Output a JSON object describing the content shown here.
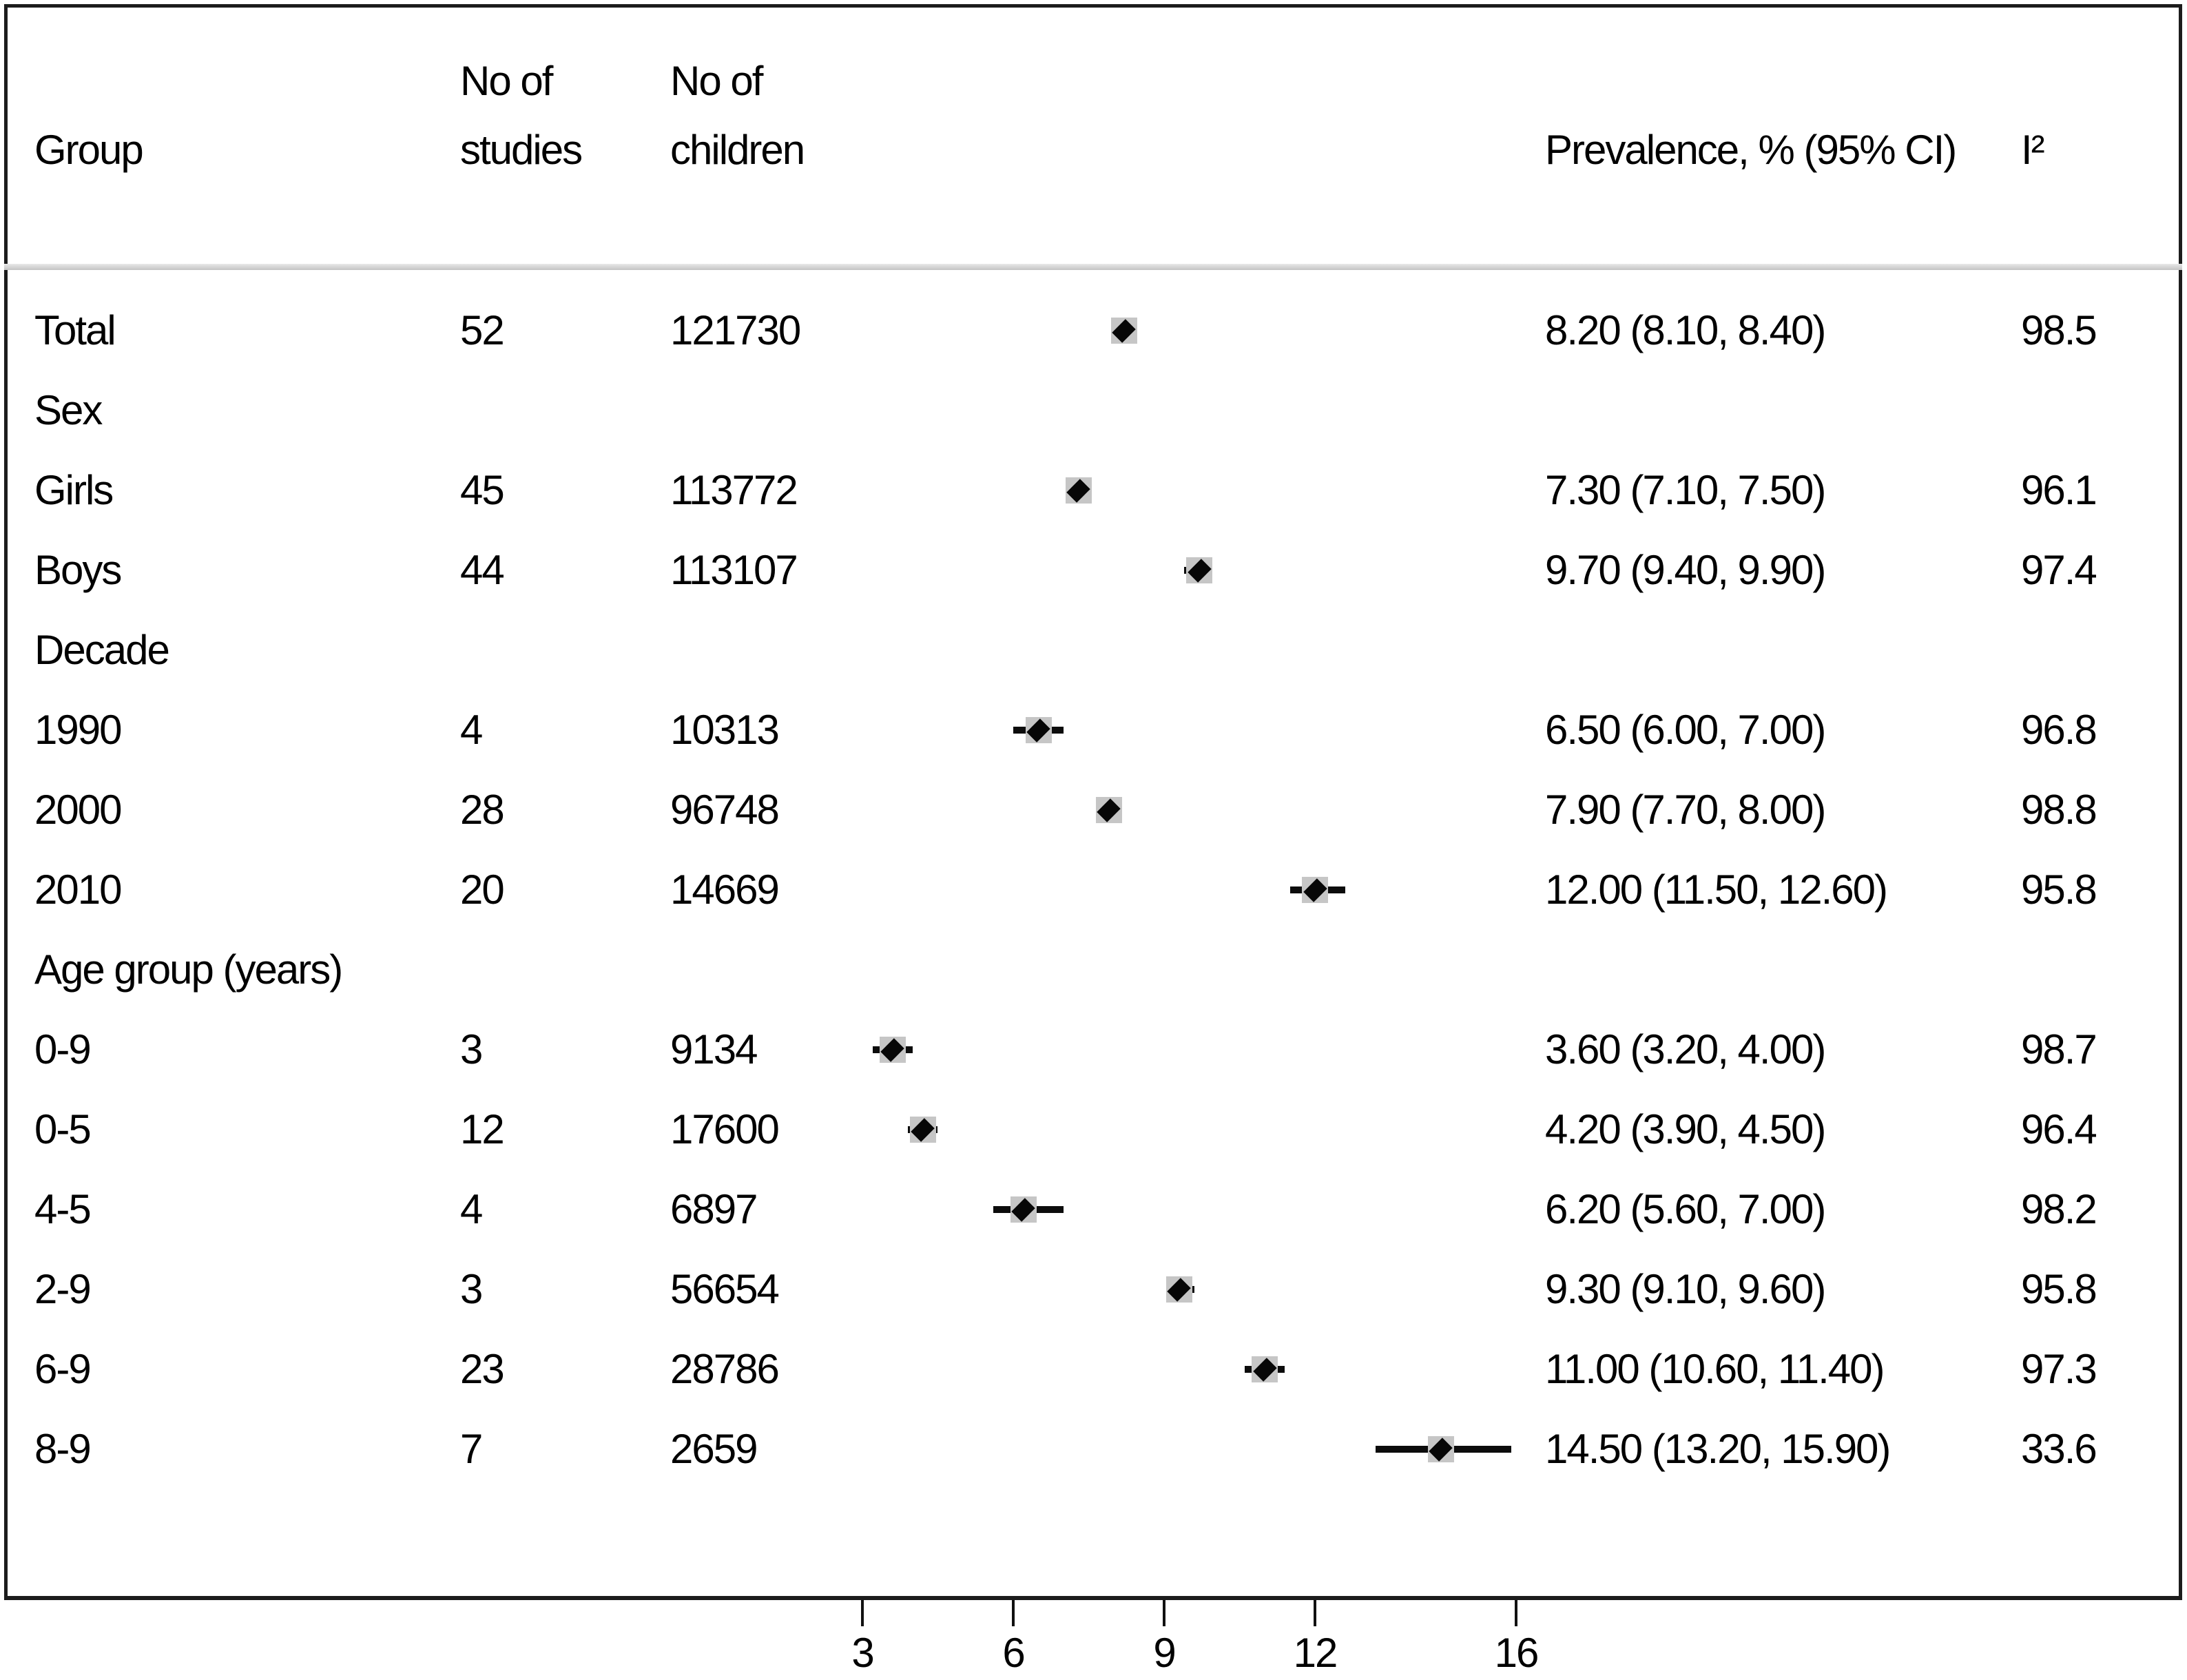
{
  "header": {
    "col_group": "Group",
    "col_studies_line1": "No of",
    "col_studies_line2": "studies",
    "col_children_line1": "No of",
    "col_children_line2": "children",
    "col_prevalence": "Prevalence, % (95% CI)",
    "col_i2": "I²"
  },
  "rows": [
    {
      "label": "Total",
      "section": false,
      "studies": "52",
      "children": "121730",
      "prevalence": "8.20 (8.10, 8.40)",
      "i2": "98.5",
      "est": 8.2,
      "lo": 8.1,
      "hi": 8.4
    },
    {
      "label": "Sex",
      "section": true
    },
    {
      "label": "Girls",
      "section": false,
      "studies": "45",
      "children": "113772",
      "prevalence": "7.30 (7.10, 7.50)",
      "i2": "96.1",
      "est": 7.3,
      "lo": 7.1,
      "hi": 7.5
    },
    {
      "label": "Boys",
      "section": false,
      "studies": "44",
      "children": "113107",
      "prevalence": "9.70 (9.40, 9.90)",
      "i2": "97.4",
      "est": 9.7,
      "lo": 9.4,
      "hi": 9.9
    },
    {
      "label": "Decade",
      "section": true
    },
    {
      "label": "1990",
      "section": false,
      "studies": "4",
      "children": "10313",
      "prevalence": "6.50 (6.00, 7.00)",
      "i2": "96.8",
      "est": 6.5,
      "lo": 6.0,
      "hi": 7.0
    },
    {
      "label": "2000",
      "section": false,
      "studies": "28",
      "children": "96748",
      "prevalence": "7.90 (7.70, 8.00)",
      "i2": "98.8",
      "est": 7.9,
      "lo": 7.7,
      "hi": 8.0
    },
    {
      "label": "2010",
      "section": false,
      "studies": "20",
      "children": "14669",
      "prevalence": "12.00 (11.50, 12.60)",
      "i2": "95.8",
      "est": 12.0,
      "lo": 11.5,
      "hi": 12.6
    },
    {
      "label": "Age group (years)",
      "section": true
    },
    {
      "label": "0-9",
      "section": false,
      "studies": "3",
      "children": "9134",
      "prevalence": "3.60 (3.20, 4.00)",
      "i2": "98.7",
      "est": 3.6,
      "lo": 3.2,
      "hi": 4.0
    },
    {
      "label": "0-5",
      "section": false,
      "studies": "12",
      "children": "17600",
      "prevalence": "4.20 (3.90, 4.50)",
      "i2": "96.4",
      "est": 4.2,
      "lo": 3.9,
      "hi": 4.5
    },
    {
      "label": "4-5",
      "section": false,
      "studies": "4",
      "children": "6897",
      "prevalence": "6.20 (5.60, 7.00)",
      "i2": "98.2",
      "est": 6.2,
      "lo": 5.6,
      "hi": 7.0
    },
    {
      "label": "2-9",
      "section": false,
      "studies": "3",
      "children": "56654",
      "prevalence": "9.30 (9.10, 9.60)",
      "i2": "95.8",
      "est": 9.3,
      "lo": 9.1,
      "hi": 9.6
    },
    {
      "label": "6-9",
      "section": false,
      "studies": "23",
      "children": "28786",
      "prevalence": "11.00 (10.60, 11.40)",
      "i2": "97.3",
      "est": 11.0,
      "lo": 10.6,
      "hi": 11.4
    },
    {
      "label": "8-9",
      "section": false,
      "studies": "7",
      "children": "2659",
      "prevalence": "14.50 (13.20, 15.90)",
      "i2": "33.6",
      "est": 14.5,
      "lo": 13.2,
      "hi": 15.9
    }
  ],
  "axis": {
    "tick_labels": [
      "3",
      "6",
      "9",
      "12",
      "16"
    ],
    "tick_values": [
      3,
      6,
      9,
      12,
      16
    ]
  },
  "colors": {
    "text": "#000000",
    "frame_border": "#1c1c1c",
    "weight_box": "#c6c6c6",
    "marker": "#070707",
    "header_divider": "#cfcfcf"
  },
  "chart_data": {
    "type": "scatter",
    "variant": "forest-plot",
    "title": "",
    "xlabel": "",
    "ylabel": "",
    "x_axis": {
      "ticks": [
        3,
        6,
        9,
        12,
        16
      ],
      "range": [
        2.4,
        16.6
      ],
      "grid": false
    },
    "columns": [
      "Group",
      "No of studies",
      "No of children",
      "Prevalence, % (95% CI)",
      "I²"
    ],
    "sections": [
      "Sex",
      "Decade",
      "Age group (years)"
    ],
    "groups": [
      {
        "group": "Total",
        "studies": 52,
        "children": 121730,
        "prevalence": 8.2,
        "ci": [
          8.1,
          8.4
        ],
        "i2": 98.5
      },
      {
        "group": "Girls",
        "studies": 45,
        "children": 113772,
        "prevalence": 7.3,
        "ci": [
          7.1,
          7.5
        ],
        "i2": 96.1
      },
      {
        "group": "Boys",
        "studies": 44,
        "children": 113107,
        "prevalence": 9.7,
        "ci": [
          9.4,
          9.9
        ],
        "i2": 97.4
      },
      {
        "group": "1990",
        "studies": 4,
        "children": 10313,
        "prevalence": 6.5,
        "ci": [
          6.0,
          7.0
        ],
        "i2": 96.8
      },
      {
        "group": "2000",
        "studies": 28,
        "children": 96748,
        "prevalence": 7.9,
        "ci": [
          7.7,
          8.0
        ],
        "i2": 98.8
      },
      {
        "group": "2010",
        "studies": 20,
        "children": 14669,
        "prevalence": 12.0,
        "ci": [
          11.5,
          12.6
        ],
        "i2": 95.8
      },
      {
        "group": "0-9",
        "studies": 3,
        "children": 9134,
        "prevalence": 3.6,
        "ci": [
          3.2,
          4.0
        ],
        "i2": 98.7
      },
      {
        "group": "0-5",
        "studies": 12,
        "children": 17600,
        "prevalence": 4.2,
        "ci": [
          3.9,
          4.5
        ],
        "i2": 96.4
      },
      {
        "group": "4-5",
        "studies": 4,
        "children": 6897,
        "prevalence": 6.2,
        "ci": [
          5.6,
          7.0
        ],
        "i2": 98.2
      },
      {
        "group": "2-9",
        "studies": 3,
        "children": 56654,
        "prevalence": 9.3,
        "ci": [
          9.1,
          9.6
        ],
        "i2": 95.8
      },
      {
        "group": "6-9",
        "studies": 23,
        "children": 28786,
        "prevalence": 11.0,
        "ci": [
          10.6,
          11.4
        ],
        "i2": 97.3
      },
      {
        "group": "8-9",
        "studies": 7,
        "children": 2659,
        "prevalence": 14.5,
        "ci": [
          13.2,
          15.9
        ],
        "i2": 33.6
      }
    ]
  }
}
